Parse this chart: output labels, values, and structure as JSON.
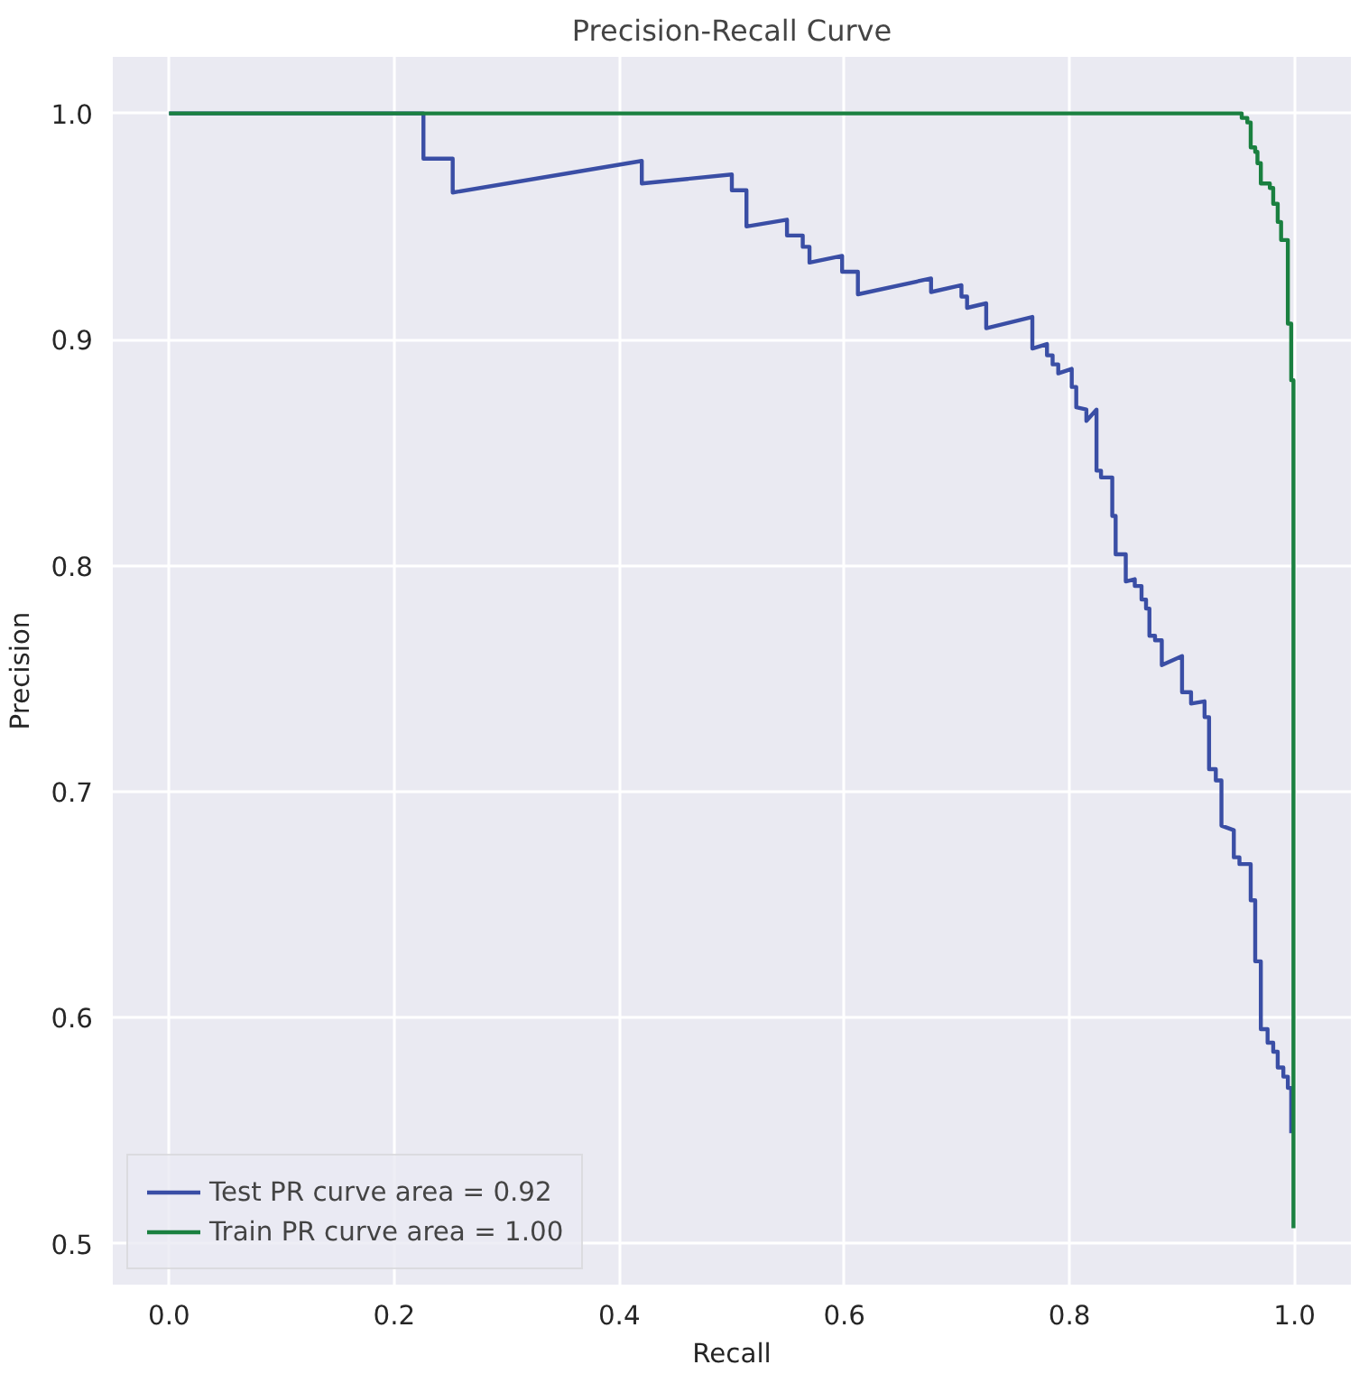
{
  "chart_data": {
    "type": "line",
    "title": "Precision-Recall Curve",
    "xlabel": "Recall",
    "ylabel": "Precision",
    "xlim": [
      -0.05,
      1.05
    ],
    "ylim": [
      0.482,
      1.025
    ],
    "xticks": [
      {
        "value": 0,
        "label": "0.0"
      },
      0.2,
      0.4,
      0.6,
      0.8,
      {
        "value": 1,
        "label": "1.0"
      }
    ],
    "yticks": [
      0.5,
      0.6,
      0.7,
      0.8,
      0.9,
      {
        "value": 1,
        "label": "1.0"
      }
    ],
    "grid": true,
    "legend": "bottom left",
    "marker": "none",
    "line_style": "solid",
    "series": [
      {
        "name": "Test PR curve area = 0.92",
        "color": "#3a4ea5",
        "x": [
          0,
          0.226,
          0.226,
          0.252,
          0.252,
          0.42,
          0.42,
          0.5,
          0.5,
          0.513,
          0.513,
          0.549,
          0.549,
          0.563,
          0.563,
          0.569,
          0.569,
          0.598,
          0.598,
          0.612,
          0.612,
          0.677,
          0.677,
          0.704,
          0.704,
          0.709,
          0.709,
          0.726,
          0.726,
          0.767,
          0.767,
          0.78,
          0.78,
          0.785,
          0.785,
          0.79,
          0.79,
          0.802,
          0.802,
          0.806,
          0.806,
          0.815,
          0.815,
          0.824,
          0.824,
          0.828,
          0.828,
          0.838,
          0.838,
          0.841,
          0.841,
          0.85,
          0.85,
          0.858,
          0.858,
          0.864,
          0.864,
          0.868,
          0.868,
          0.871,
          0.871,
          0.876,
          0.876,
          0.882,
          0.882,
          0.9,
          0.9,
          0.908,
          0.908,
          0.92,
          0.92,
          0.924,
          0.924,
          0.93,
          0.93,
          0.935,
          0.935,
          0.946,
          0.946,
          0.951,
          0.951,
          0.961,
          0.961,
          0.965,
          0.965,
          0.97,
          0.97,
          0.976,
          0.976,
          0.981,
          0.981,
          0.985,
          0.985,
          0.99,
          0.99,
          0.994,
          0.994,
          0.997,
          0.997
        ],
        "values": [
          1.0,
          1.0,
          0.98,
          0.98,
          0.965,
          0.979,
          0.969,
          0.973,
          0.966,
          0.966,
          0.95,
          0.953,
          0.946,
          0.946,
          0.941,
          0.941,
          0.934,
          0.937,
          0.93,
          0.93,
          0.92,
          0.927,
          0.921,
          0.924,
          0.919,
          0.919,
          0.914,
          0.916,
          0.905,
          0.91,
          0.896,
          0.898,
          0.893,
          0.893,
          0.889,
          0.889,
          0.885,
          0.887,
          0.879,
          0.879,
          0.87,
          0.869,
          0.864,
          0.869,
          0.842,
          0.842,
          0.839,
          0.839,
          0.822,
          0.822,
          0.805,
          0.805,
          0.793,
          0.794,
          0.791,
          0.791,
          0.785,
          0.785,
          0.781,
          0.781,
          0.769,
          0.769,
          0.767,
          0.767,
          0.756,
          0.76,
          0.744,
          0.744,
          0.739,
          0.74,
          0.733,
          0.733,
          0.71,
          0.71,
          0.705,
          0.705,
          0.685,
          0.683,
          0.671,
          0.671,
          0.668,
          0.668,
          0.652,
          0.652,
          0.625,
          0.625,
          0.595,
          0.595,
          0.589,
          0.589,
          0.585,
          0.585,
          0.578,
          0.578,
          0.574,
          0.574,
          0.569,
          0.569,
          0.549
        ]
      },
      {
        "name": "Train PR curve area = 1.00",
        "color": "#1a8040",
        "x": [
          0,
          0.949,
          0.953,
          0.953,
          0.958,
          0.958,
          0.961,
          0.961,
          0.965,
          0.965,
          0.967,
          0.967,
          0.97,
          0.97,
          0.978,
          0.978,
          0.981,
          0.981,
          0.985,
          0.985,
          0.988,
          0.988,
          0.994,
          0.994,
          0.997,
          0.997,
          0.999,
          0.999
        ],
        "values": [
          1.0,
          1.0,
          1.0,
          0.998,
          0.998,
          0.996,
          0.996,
          0.985,
          0.985,
          0.983,
          0.983,
          0.978,
          0.978,
          0.969,
          0.969,
          0.967,
          0.967,
          0.96,
          0.96,
          0.952,
          0.952,
          0.944,
          0.944,
          0.907,
          0.907,
          0.882,
          0.882,
          0.507
        ]
      }
    ]
  }
}
